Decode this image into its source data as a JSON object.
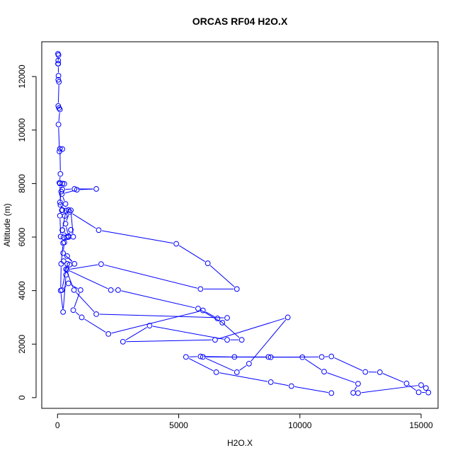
{
  "chart_data": {
    "type": "line",
    "title": "ORCAS RF04 H2O.X",
    "xlabel": "H2O.X",
    "ylabel": "Altitude (m)",
    "xlim": [
      -650,
      15700
    ],
    "ylim": [
      -400,
      13300
    ],
    "x_ticks": [
      0,
      5000,
      10000,
      15000
    ],
    "y_ticks": [
      0,
      2000,
      4000,
      6000,
      8000,
      10000,
      12000
    ],
    "x_tick_labels": [
      "0",
      "5000",
      "10000",
      "15000"
    ],
    "y_tick_labels": [
      "0",
      "2000",
      "4000",
      "6000",
      "8000",
      "10000",
      "12000"
    ],
    "grid": false,
    "marker": "open-circle",
    "color": "#0000ff",
    "series": [
      {
        "values": [
          [
            11300,
            170
          ],
          [
            9650,
            430
          ],
          [
            8800,
            580
          ],
          [
            6550,
            950
          ],
          [
            5300,
            1520
          ],
          [
            5900,
            1540
          ],
          [
            7300,
            1520
          ],
          [
            8700,
            1520
          ],
          [
            10100,
            1510
          ],
          [
            11000,
            970
          ],
          [
            12400,
            520
          ],
          [
            12200,
            180
          ],
          [
            12400,
            170
          ],
          [
            15000,
            470
          ],
          [
            15200,
            360
          ],
          [
            15300,
            190
          ],
          [
            14900,
            200
          ],
          [
            14400,
            530
          ],
          [
            13300,
            950
          ],
          [
            12700,
            960
          ],
          [
            11300,
            1540
          ],
          [
            10900,
            1520
          ],
          [
            8800,
            1510
          ],
          [
            6000,
            1520
          ],
          [
            7400,
            950
          ],
          [
            7900,
            1270
          ],
          [
            9500,
            3000
          ],
          [
            6500,
            2160
          ],
          [
            2700,
            2090
          ],
          [
            3800,
            2690
          ],
          [
            7000,
            2160
          ],
          [
            7600,
            2160
          ],
          [
            6600,
            2960
          ],
          [
            6000,
            3260
          ],
          [
            2100,
            2380
          ],
          [
            1000,
            3000
          ],
          [
            650,
            3270
          ],
          [
            950,
            4020
          ],
          [
            450,
            4270
          ],
          [
            180,
            4020
          ],
          [
            400,
            5000
          ],
          [
            350,
            4800
          ],
          [
            680,
            4020
          ],
          [
            1600,
            3120
          ],
          [
            7000,
            2980
          ],
          [
            6800,
            2800
          ],
          [
            5800,
            3330
          ],
          [
            2500,
            4020
          ],
          [
            2200,
            4020
          ],
          [
            400,
            4780
          ],
          [
            1800,
            4990
          ],
          [
            5900,
            4060
          ],
          [
            7400,
            4060
          ],
          [
            6200,
            5020
          ],
          [
            4900,
            5750
          ],
          [
            1700,
            6260
          ],
          [
            500,
            6940
          ],
          [
            330,
            6500
          ],
          [
            450,
            6040
          ],
          [
            250,
            5990
          ],
          [
            200,
            6260
          ],
          [
            350,
            6990
          ],
          [
            330,
            7240
          ],
          [
            180,
            7610
          ],
          [
            800,
            7770
          ],
          [
            1600,
            7800
          ],
          [
            700,
            7800
          ],
          [
            200,
            7780
          ],
          [
            280,
            7990
          ],
          [
            200,
            8000
          ],
          [
            150,
            7700
          ],
          [
            100,
            7300
          ],
          [
            200,
            7010
          ],
          [
            300,
            6790
          ],
          [
            450,
            7010
          ],
          [
            550,
            7000
          ],
          [
            650,
            6010
          ],
          [
            550,
            6270
          ],
          [
            380,
            5990
          ],
          [
            280,
            5800
          ],
          [
            230,
            5400
          ],
          [
            700,
            5000
          ],
          [
            400,
            5290
          ],
          [
            250,
            5100
          ],
          [
            500,
            4970
          ],
          [
            350,
            4590
          ],
          [
            230,
            3200
          ],
          [
            130,
            4000
          ],
          [
            150,
            5000
          ],
          [
            230,
            5780
          ],
          [
            450,
            6000
          ],
          [
            200,
            6260
          ],
          [
            130,
            6020
          ],
          [
            100,
            6800
          ],
          [
            180,
            7000
          ],
          [
            120,
            7200
          ],
          [
            100,
            8000
          ],
          [
            80,
            8030
          ],
          [
            120,
            8360
          ],
          [
            100,
            9300
          ],
          [
            200,
            9290
          ],
          [
            80,
            9200
          ],
          [
            40,
            10210
          ],
          [
            100,
            10770
          ],
          [
            60,
            10820
          ],
          [
            30,
            10900
          ],
          [
            60,
            11800
          ],
          [
            30,
            11880
          ],
          [
            40,
            12030
          ],
          [
            30,
            12480
          ],
          [
            30,
            12600
          ],
          [
            20,
            12480
          ],
          [
            40,
            12800
          ],
          [
            20,
            12850
          ]
        ]
      }
    ]
  }
}
